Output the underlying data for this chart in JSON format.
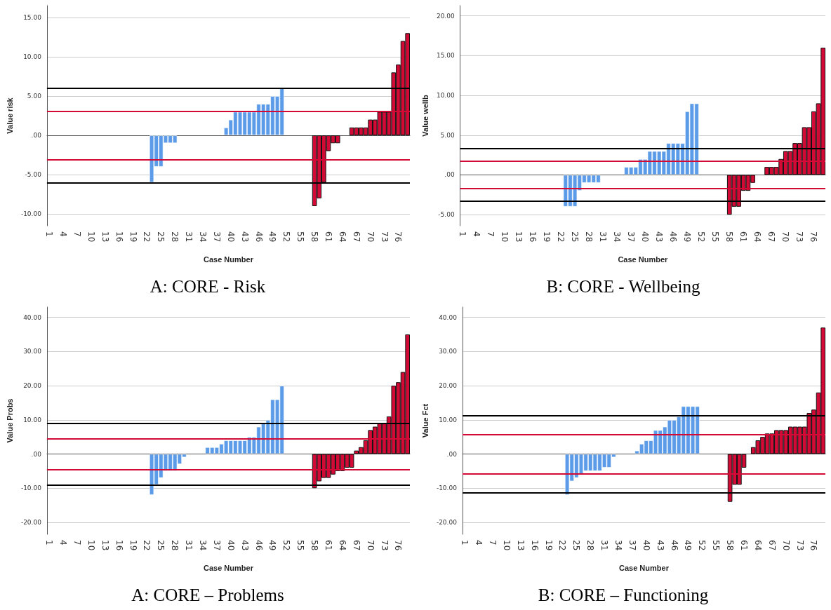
{
  "chart_data": [
    {
      "type": "bar",
      "title": "A: CORE - Risk",
      "xlabel": "Case Number",
      "ylabel": "Value risk",
      "categories": [
        "1",
        null,
        null,
        "4",
        null,
        null,
        "7",
        null,
        null,
        "10",
        null,
        null,
        "13",
        null,
        null,
        "16",
        null,
        null,
        "19",
        null,
        null,
        "22",
        null,
        null,
        "25",
        null,
        null,
        "28",
        null,
        null,
        "31",
        null,
        null,
        "34",
        null,
        null,
        "37",
        null,
        null,
        "40",
        null,
        null,
        "43",
        null,
        null,
        "46",
        null,
        null,
        "49",
        null,
        null,
        "52",
        null,
        null,
        "55",
        null,
        null,
        "58",
        null,
        null,
        "61",
        null,
        null,
        "64",
        null,
        null,
        "67",
        null,
        null,
        "70",
        null,
        null,
        "73",
        null,
        null,
        "76",
        null,
        null
      ],
      "series": [
        {
          "color": "#5b9be8",
          "values": [
            null,
            null,
            null,
            null,
            null,
            null,
            null,
            null,
            null,
            null,
            null,
            null,
            null,
            null,
            null,
            null,
            null,
            null,
            null,
            null,
            null,
            null,
            -6,
            -4,
            -4,
            -1,
            -1,
            -1,
            null,
            null,
            null,
            null,
            null,
            null,
            null,
            null,
            null,
            null,
            1,
            2,
            3,
            3,
            3,
            3,
            3,
            4,
            4,
            4,
            5,
            5,
            6,
            null,
            null,
            null,
            null,
            null,
            null,
            null,
            null,
            null,
            null,
            null,
            null,
            null,
            null,
            null,
            null,
            null,
            null,
            null,
            null,
            null,
            null,
            null,
            null,
            null,
            null,
            null
          ]
        },
        {
          "color": "#d20a35",
          "values": [
            null,
            null,
            null,
            null,
            null,
            null,
            null,
            null,
            null,
            null,
            null,
            null,
            null,
            null,
            null,
            null,
            null,
            null,
            null,
            null,
            null,
            null,
            null,
            null,
            null,
            null,
            null,
            null,
            null,
            null,
            null,
            null,
            null,
            null,
            null,
            null,
            null,
            null,
            null,
            null,
            null,
            null,
            null,
            null,
            null,
            null,
            null,
            null,
            null,
            null,
            null,
            null,
            null,
            null,
            null,
            null,
            null,
            -9,
            -8,
            -6,
            -2,
            -1,
            -1,
            null,
            null,
            1,
            1,
            1,
            1,
            2,
            2,
            3,
            3,
            3,
            8,
            9,
            12,
            13
          ]
        }
      ],
      "ylim": [
        -11.5,
        16.5
      ],
      "yticks": [
        {
          "value": -10,
          "label": "-10.00"
        },
        {
          "value": -5,
          "label": "-5.00"
        },
        {
          "value": 0,
          "label": ".00"
        },
        {
          "value": 5,
          "label": "5.00"
        },
        {
          "value": 10,
          "label": "10.00"
        },
        {
          "value": 15,
          "label": "15.00"
        }
      ],
      "grid": "y",
      "ref_lines": [
        {
          "axis": "y",
          "value": 6,
          "color": "#000000"
        },
        {
          "axis": "y",
          "value": -6,
          "color": "#000000"
        },
        {
          "axis": "y",
          "value": 3.1,
          "color": "#d20a35"
        },
        {
          "axis": "y",
          "value": -3.1,
          "color": "#d20a35"
        }
      ]
    },
    {
      "type": "bar",
      "title": "B: CORE - Wellbeing",
      "xlabel": "Case Number",
      "ylabel": "Value wellb",
      "categories": [
        "1",
        null,
        null,
        "4",
        null,
        null,
        "7",
        null,
        null,
        "10",
        null,
        null,
        "13",
        null,
        null,
        "16",
        null,
        null,
        "19",
        null,
        null,
        "22",
        null,
        null,
        "25",
        null,
        null,
        "28",
        null,
        null,
        "31",
        null,
        null,
        "34",
        null,
        null,
        "37",
        null,
        null,
        "40",
        null,
        null,
        "43",
        null,
        null,
        "46",
        null,
        null,
        "49",
        null,
        null,
        "52",
        null,
        null,
        "55",
        null,
        null,
        "58",
        null,
        null,
        "61",
        null,
        null,
        "64",
        null,
        null,
        "67",
        null,
        null,
        "70",
        null,
        null,
        "73",
        null,
        null,
        "76",
        null,
        null
      ],
      "series": [
        {
          "color": "#5b9be8",
          "values": [
            null,
            null,
            null,
            null,
            null,
            null,
            null,
            null,
            null,
            null,
            null,
            null,
            null,
            null,
            null,
            null,
            null,
            null,
            null,
            null,
            null,
            null,
            -4,
            -4,
            -4,
            -2,
            -1,
            -1,
            -1,
            -1,
            null,
            null,
            null,
            null,
            null,
            1,
            1,
            1,
            2,
            2,
            3,
            3,
            3,
            3,
            4,
            4,
            4,
            4,
            8,
            9,
            9,
            null,
            null,
            null,
            null,
            null,
            null,
            null,
            null,
            null,
            null,
            null,
            null,
            null,
            null,
            null,
            null,
            null,
            null,
            null,
            null,
            null,
            null,
            null,
            null,
            null,
            null,
            null
          ]
        },
        {
          "color": "#d20a35",
          "values": [
            null,
            null,
            null,
            null,
            null,
            null,
            null,
            null,
            null,
            null,
            null,
            null,
            null,
            null,
            null,
            null,
            null,
            null,
            null,
            null,
            null,
            null,
            null,
            null,
            null,
            null,
            null,
            null,
            null,
            null,
            null,
            null,
            null,
            null,
            null,
            null,
            null,
            null,
            null,
            null,
            null,
            null,
            null,
            null,
            null,
            null,
            null,
            null,
            null,
            null,
            null,
            null,
            null,
            null,
            null,
            null,
            null,
            -5,
            -4,
            -4,
            -2,
            -2,
            -1,
            null,
            null,
            1,
            1,
            1,
            2,
            3,
            3,
            4,
            4,
            6,
            6,
            8,
            9,
            16
          ]
        }
      ],
      "ylim": [
        -6.4,
        21.3
      ],
      "yticks": [
        {
          "value": -5,
          "label": "-5.00"
        },
        {
          "value": 0,
          "label": ".00"
        },
        {
          "value": 5,
          "label": "5.00"
        },
        {
          "value": 10,
          "label": "10.00"
        },
        {
          "value": 15,
          "label": "15.00"
        },
        {
          "value": 20,
          "label": "20.00"
        }
      ],
      "grid": "y",
      "ref_lines": [
        {
          "axis": "y",
          "value": 3.3,
          "color": "#000000"
        },
        {
          "axis": "y",
          "value": -3.3,
          "color": "#000000"
        },
        {
          "axis": "y",
          "value": 1.7,
          "color": "#d20a35"
        },
        {
          "axis": "y",
          "value": -1.7,
          "color": "#d20a35"
        }
      ]
    },
    {
      "type": "bar",
      "title": "A: CORE – Problems",
      "xlabel": "Case Number",
      "ylabel": "Value Probs",
      "categories": [
        "1",
        null,
        null,
        "4",
        null,
        null,
        "7",
        null,
        null,
        "10",
        null,
        null,
        "13",
        null,
        null,
        "16",
        null,
        null,
        "19",
        null,
        null,
        "22",
        null,
        null,
        "25",
        null,
        null,
        "28",
        null,
        null,
        "31",
        null,
        null,
        "34",
        null,
        null,
        "37",
        null,
        null,
        "40",
        null,
        null,
        "43",
        null,
        null,
        "46",
        null,
        null,
        "49",
        null,
        null,
        "52",
        null,
        null,
        "55",
        null,
        null,
        "58",
        null,
        null,
        "61",
        null,
        null,
        "64",
        null,
        null,
        "67",
        null,
        null,
        "70",
        null,
        null,
        "73",
        null,
        null,
        "76",
        null,
        null
      ],
      "series": [
        {
          "color": "#5b9be8",
          "values": [
            null,
            null,
            null,
            null,
            null,
            null,
            null,
            null,
            null,
            null,
            null,
            null,
            null,
            null,
            null,
            null,
            null,
            null,
            null,
            null,
            null,
            null,
            -12,
            -9,
            -7,
            -5,
            -5,
            -5,
            -3,
            -1,
            null,
            null,
            null,
            null,
            2,
            2,
            2,
            3,
            4,
            4,
            4,
            4,
            4,
            5,
            5,
            8,
            9,
            10,
            16,
            16,
            20,
            null,
            null,
            null,
            null,
            null,
            null,
            null,
            null,
            null,
            null,
            null,
            null,
            null,
            null,
            null,
            null,
            null,
            null,
            null,
            null,
            null,
            null,
            null,
            null,
            null,
            null,
            null
          ]
        },
        {
          "color": "#d20a35",
          "values": [
            null,
            null,
            null,
            null,
            null,
            null,
            null,
            null,
            null,
            null,
            null,
            null,
            null,
            null,
            null,
            null,
            null,
            null,
            null,
            null,
            null,
            null,
            null,
            null,
            null,
            null,
            null,
            null,
            null,
            null,
            null,
            null,
            null,
            null,
            null,
            null,
            null,
            null,
            null,
            null,
            null,
            null,
            null,
            null,
            null,
            null,
            null,
            null,
            null,
            null,
            null,
            null,
            null,
            null,
            null,
            null,
            null,
            -10,
            -8,
            -7,
            -7,
            -6,
            -5,
            -5,
            -4,
            -4,
            1,
            2,
            4,
            7,
            8,
            9,
            9,
            11,
            20,
            21,
            24,
            35
          ]
        }
      ],
      "ylim": [
        -23.5,
        43
      ],
      "yticks": [
        {
          "value": -20,
          "label": "-20.00"
        },
        {
          "value": -10,
          "label": "-10.00"
        },
        {
          "value": 0,
          "label": ".00"
        },
        {
          "value": 10,
          "label": "10.00"
        },
        {
          "value": 20,
          "label": "20.00"
        },
        {
          "value": 30,
          "label": "30.00"
        },
        {
          "value": 40,
          "label": "40.00"
        }
      ],
      "grid": "y",
      "ref_lines": [
        {
          "axis": "y",
          "value": 9,
          "color": "#000000"
        },
        {
          "axis": "y",
          "value": -9,
          "color": "#000000"
        },
        {
          "axis": "y",
          "value": 4.5,
          "color": "#d20a35"
        },
        {
          "axis": "y",
          "value": -4.5,
          "color": "#d20a35"
        }
      ]
    },
    {
      "type": "bar",
      "title": "B: CORE – Functioning",
      "xlabel": "Case Number",
      "ylabel": "Value Fct",
      "categories": [
        "1",
        null,
        null,
        "4",
        null,
        null,
        "7",
        null,
        null,
        "10",
        null,
        null,
        "13",
        null,
        null,
        "16",
        null,
        null,
        "19",
        null,
        null,
        "22",
        null,
        null,
        "25",
        null,
        null,
        "28",
        null,
        null,
        "31",
        null,
        null,
        "34",
        null,
        null,
        "37",
        null,
        null,
        "40",
        null,
        null,
        "43",
        null,
        null,
        "46",
        null,
        null,
        "49",
        null,
        null,
        "52",
        null,
        null,
        "55",
        null,
        null,
        "58",
        null,
        null,
        "61",
        null,
        null,
        "64",
        null,
        null,
        "67",
        null,
        null,
        "70",
        null,
        null,
        "73",
        null,
        null,
        "76",
        null,
        null
      ],
      "series": [
        {
          "color": "#5b9be8",
          "values": [
            null,
            null,
            null,
            null,
            null,
            null,
            null,
            null,
            null,
            null,
            null,
            null,
            null,
            null,
            null,
            null,
            null,
            null,
            null,
            null,
            null,
            null,
            -12,
            -8,
            -7,
            -6,
            -5,
            -5,
            -5,
            -5,
            -4,
            -4,
            -1,
            null,
            null,
            null,
            null,
            1,
            3,
            4,
            4,
            7,
            7,
            8,
            10,
            10,
            11,
            14,
            14,
            14,
            14,
            null,
            null,
            null,
            null,
            null,
            null,
            null,
            null,
            null,
            null,
            null,
            null,
            null,
            null,
            null,
            null,
            null,
            null,
            null,
            null,
            null,
            null,
            null,
            null,
            null,
            null,
            null
          ]
        },
        {
          "color": "#d20a35",
          "values": [
            null,
            null,
            null,
            null,
            null,
            null,
            null,
            null,
            null,
            null,
            null,
            null,
            null,
            null,
            null,
            null,
            null,
            null,
            null,
            null,
            null,
            null,
            null,
            null,
            null,
            null,
            null,
            null,
            null,
            null,
            null,
            null,
            null,
            null,
            null,
            null,
            null,
            null,
            null,
            null,
            null,
            null,
            null,
            null,
            null,
            null,
            null,
            null,
            null,
            null,
            null,
            null,
            null,
            null,
            null,
            null,
            null,
            -14,
            -9,
            -9,
            -4,
            null,
            2,
            4,
            5,
            6,
            6,
            7,
            7,
            7,
            8,
            8,
            8,
            8,
            12,
            13,
            18,
            37
          ]
        }
      ],
      "ylim": [
        -23.5,
        43
      ],
      "yticks": [
        {
          "value": -20,
          "label": "-20.00"
        },
        {
          "value": -10,
          "label": "-10.00"
        },
        {
          "value": 0,
          "label": ".00"
        },
        {
          "value": 10,
          "label": "10.00"
        },
        {
          "value": 20,
          "label": "20.00"
        },
        {
          "value": 30,
          "label": "30.00"
        },
        {
          "value": 40,
          "label": "40.00"
        }
      ],
      "grid": "y",
      "ref_lines": [
        {
          "axis": "y",
          "value": 11.3,
          "color": "#000000"
        },
        {
          "axis": "y",
          "value": -11.3,
          "color": "#000000"
        },
        {
          "axis": "y",
          "value": 5.7,
          "color": "#d20a35"
        },
        {
          "axis": "y",
          "value": -5.7,
          "color": "#d20a35"
        }
      ]
    }
  ]
}
